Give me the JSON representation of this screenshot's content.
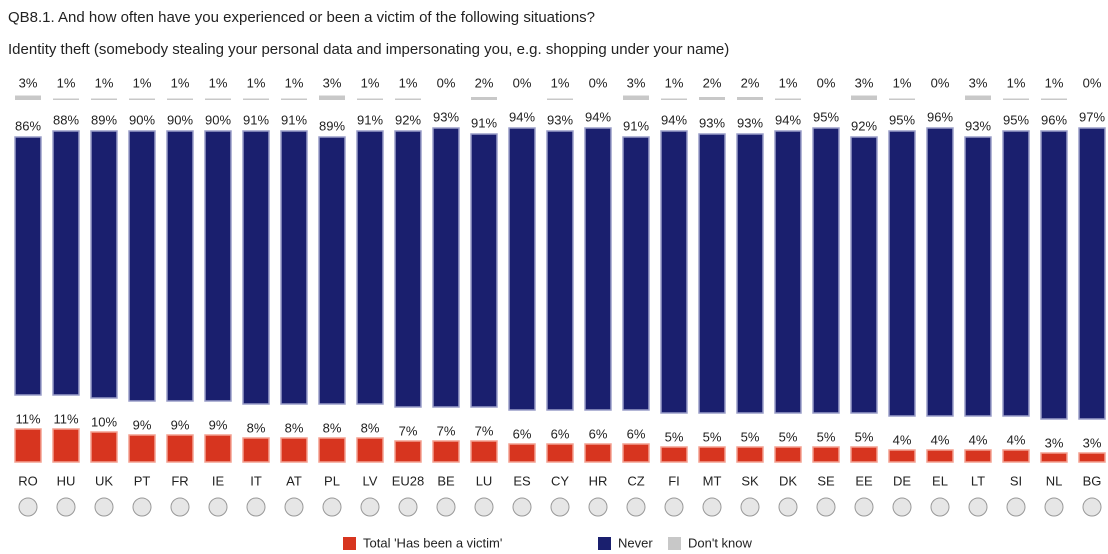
{
  "chart_data": {
    "type": "bar",
    "title": "QB8.1. And how often have you experienced or been a victim of the following situations?",
    "subtitle": "Identity theft (somebody stealing your personal data and impersonating you, e.g. shopping under your name)",
    "categories": [
      "RO",
      "HU",
      "UK",
      "PT",
      "FR",
      "IE",
      "IT",
      "AT",
      "PL",
      "LV",
      "EU28",
      "BE",
      "LU",
      "ES",
      "CY",
      "HR",
      "CZ",
      "FI",
      "MT",
      "SK",
      "DK",
      "SE",
      "EE",
      "DE",
      "EL",
      "LT",
      "SI",
      "NL",
      "BG"
    ],
    "series": [
      {
        "name": "Total 'Has been a victim'",
        "color": "#d7351f",
        "values": [
          11,
          11,
          10,
          9,
          9,
          9,
          8,
          8,
          8,
          8,
          7,
          7,
          7,
          6,
          6,
          6,
          6,
          5,
          5,
          5,
          5,
          5,
          5,
          4,
          4,
          4,
          4,
          3,
          3
        ],
        "value_labels": [
          "11%",
          "11%",
          "10%",
          "9%",
          "9%",
          "9%",
          "8%",
          "8%",
          "8%",
          "8%",
          "7%",
          "7%",
          "7%",
          "6%",
          "6%",
          "6%",
          "6%",
          "5%",
          "5%",
          "5%",
          "5%",
          "5%",
          "5%",
          "4%",
          "4%",
          "4%",
          "4%",
          "3%",
          "3%"
        ]
      },
      {
        "name": "Never",
        "color": "#1a1f6e",
        "values": [
          86,
          88,
          89,
          90,
          90,
          90,
          91,
          91,
          89,
          91,
          92,
          93,
          91,
          94,
          93,
          94,
          91,
          94,
          93,
          93,
          94,
          95,
          92,
          95,
          96,
          93,
          95,
          96,
          97
        ],
        "value_labels": [
          "86%",
          "88%",
          "89%",
          "90%",
          "90%",
          "90%",
          "91%",
          "91%",
          "89%",
          "91%",
          "92%",
          "93%",
          "91%",
          "94%",
          "93%",
          "94%",
          "91%",
          "94%",
          "93%",
          "93%",
          "94%",
          "95%",
          "92%",
          "95%",
          "96%",
          "93%",
          "95%",
          "96%",
          "97%"
        ]
      },
      {
        "name": "Don't know",
        "color": "#c8c8c8",
        "values": [
          3,
          1,
          1,
          1,
          1,
          1,
          1,
          1,
          3,
          1,
          1,
          0,
          2,
          0,
          1,
          0,
          3,
          1,
          2,
          2,
          1,
          0,
          3,
          1,
          0,
          3,
          1,
          1,
          0
        ],
        "value_labels": [
          "3%",
          "1%",
          "1%",
          "1%",
          "1%",
          "1%",
          "1%",
          "1%",
          "3%",
          "1%",
          "1%",
          "0%",
          "2%",
          "0%",
          "1%",
          "0%",
          "3%",
          "1%",
          "2%",
          "2%",
          "1%",
          "0%",
          "3%",
          "1%",
          "0%",
          "3%",
          "1%",
          "1%",
          "0%"
        ]
      }
    ]
  }
}
